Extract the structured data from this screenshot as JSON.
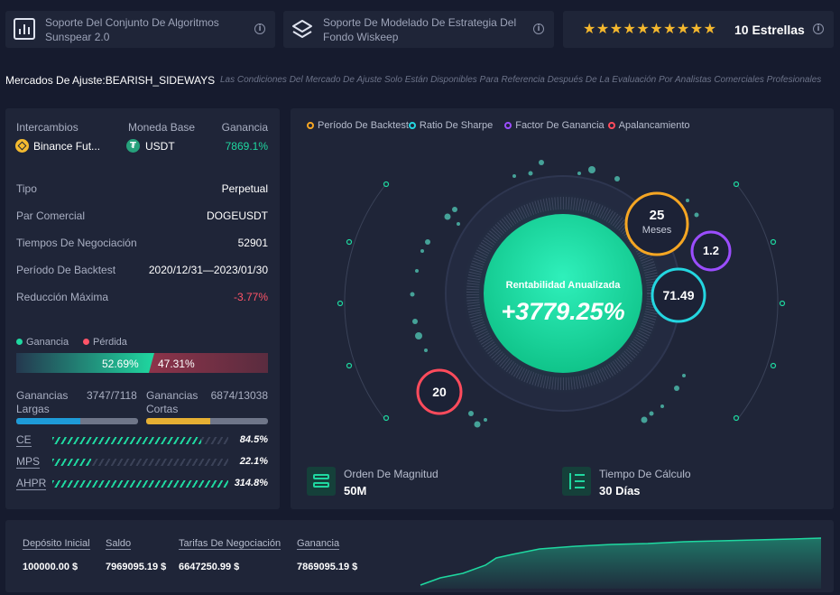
{
  "header": {
    "card1": "Soporte Del Conjunto De Algoritmos Sunspear 2.0",
    "card2": "Soporte De Modelado De Estrategia Del Fondo Wiskeep",
    "stars_label": "10 Estrellas",
    "stars_count": 10
  },
  "market": {
    "label": "Mercados De Ajuste:BEARISH_SIDEWAYS",
    "note": "Las Condiciones Del Mercado De Ajuste Solo Están Disponibles Para Referencia Después De La Evaluación Por Analistas Comerciales Profesionales"
  },
  "left": {
    "exchange_head": "Intercambios",
    "base_head": "Moneda Base",
    "profit_head": "Ganancia",
    "exchange": "Binance Fut...",
    "base": "USDT",
    "profit": "7869.1%",
    "rows": [
      {
        "label": "Tipo",
        "value": "Perpetual"
      },
      {
        "label": "Par Comercial",
        "value": "DOGEUSDT"
      },
      {
        "label": "Tiempos De Negociación",
        "value": "52901"
      },
      {
        "label": "Período De Backtest",
        "value": "2020/12/31—2023/01/30"
      },
      {
        "label": "Reducción Máxima",
        "value": "-3.77%"
      }
    ],
    "gain_legend": "Ganancia",
    "loss_legend": "Pérdida",
    "gain_pct": "52.69%",
    "loss_pct": "47.31%",
    "gain_fraction": 0.5269,
    "long_label": "Ganancias Largas",
    "long_value": "3747/7118",
    "long_fraction": 0.526,
    "short_label": "Ganancias Cortas",
    "short_value": "6874/13038",
    "short_fraction": 0.527,
    "metrics": [
      {
        "label": "CE",
        "value": "84.5%",
        "fraction": 0.845
      },
      {
        "label": "MPS",
        "value": "22.1%",
        "fraction": 0.221
      },
      {
        "label": "AHPR",
        "value": "314.8%",
        "fraction": 1.0
      }
    ]
  },
  "center": {
    "legend": [
      {
        "label": "Período De Backtest",
        "color": "#f5a623"
      },
      {
        "label": "Ratio De Sharpe",
        "color": "#24d6e0"
      },
      {
        "label": "Factor De Ganancia",
        "color": "#9b4dff"
      },
      {
        "label": "Apalancamiento",
        "color": "#ff4b5c"
      }
    ],
    "main_title": "Rentabilidad Anualizada",
    "main_value": "+3779.25%",
    "months_value": "25",
    "months_unit": "Meses",
    "profit_factor": "1.2",
    "sharpe": "71.49",
    "leverage": "20",
    "magnitude_label": "Orden De Magnitud",
    "magnitude_value": "50M",
    "calc_label": "Tiempo De Cálculo",
    "calc_value": "30 Días"
  },
  "bottom": {
    "deposit_label": "Depósito Inicial",
    "deposit_value": "100000.00 $",
    "balance_label": "Saldo",
    "balance_value": "7969095.19 $",
    "fees_label": "Tarifas De Negociación",
    "fees_value": "6647250.99 $",
    "profit_label": "Ganancia",
    "profit_value": "7869095.19 $"
  }
}
